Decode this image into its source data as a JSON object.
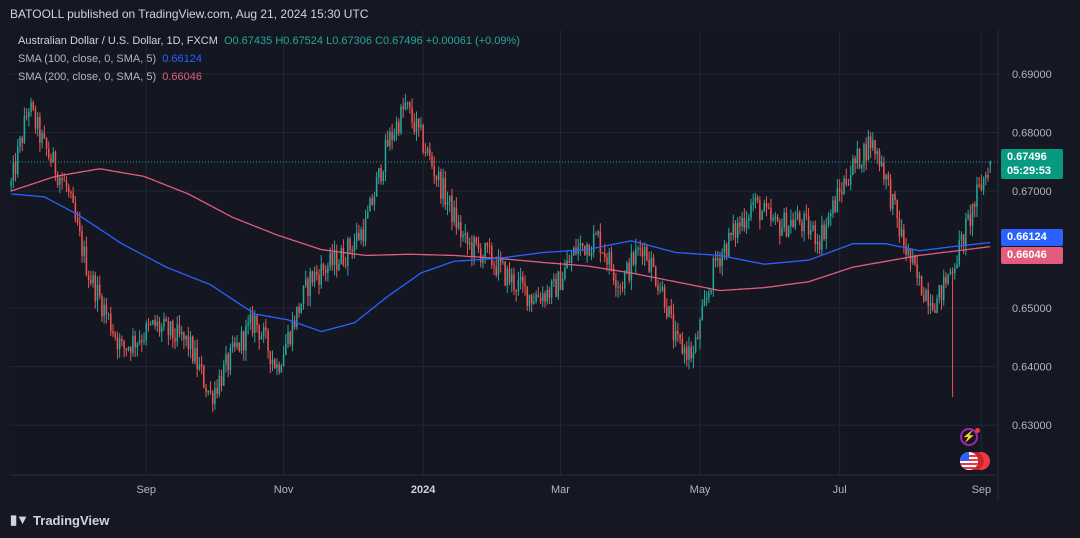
{
  "header": {
    "published": "BATOOLL published on TradingView.com, Aug 21, 2024 15:30 UTC"
  },
  "legend": {
    "symbol": "Australian Dollar / U.S. Dollar, 1D, FXCM",
    "ohlc": "O0.67435 H0.67524 L0.67306 C0.67496 +0.00061 (+0.09%)",
    "sma100_label": "SMA (100, close, 0, SMA, 5)",
    "sma100_value": "0.66124",
    "sma200_label": "SMA (200, close, 0, SMA, 5)",
    "sma200_value": "0.66046"
  },
  "price_tags": {
    "last_price": "0.67496",
    "countdown": "05:29:53",
    "sma100": "0.66124",
    "sma200": "0.66046"
  },
  "footer": {
    "brand": "TradingView"
  },
  "colors": {
    "up": "#26a69a",
    "down": "#ef5350",
    "sma100": "#2962ff",
    "sma200": "#e25c7c",
    "background": "#151823",
    "grid": "#232632"
  },
  "chart_data": {
    "type": "candlestick",
    "title": "Australian Dollar / U.S. Dollar, 1D, FXCM",
    "ylim": [
      0.6215,
      0.6975
    ],
    "y_ticks": [
      "0.69000",
      "0.68000",
      "0.67000",
      "0.65000",
      "0.64000",
      "0.63000"
    ],
    "x_ticks": [
      "Sep",
      "Nov",
      "2024",
      "Mar",
      "May",
      "Jul",
      "Sep"
    ],
    "grid": true,
    "ohlc_last": {
      "open": 0.67435,
      "high": 0.67524,
      "low": 0.67306,
      "close": 0.67496,
      "change": 0.00061,
      "change_pct": 0.09
    },
    "close_anchors": [
      [
        0,
        0.671
      ],
      [
        8,
        0.6845
      ],
      [
        15,
        0.6775
      ],
      [
        25,
        0.6705
      ],
      [
        35,
        0.656
      ],
      [
        50,
        0.643
      ],
      [
        65,
        0.647
      ],
      [
        80,
        0.644
      ],
      [
        90,
        0.635
      ],
      [
        100,
        0.642
      ],
      [
        110,
        0.648
      ],
      [
        120,
        0.64
      ],
      [
        135,
        0.655
      ],
      [
        150,
        0.659
      ],
      [
        160,
        0.664
      ],
      [
        170,
        0.678
      ],
      [
        178,
        0.6845
      ],
      [
        185,
        0.679
      ],
      [
        195,
        0.67
      ],
      [
        205,
        0.661
      ],
      [
        215,
        0.659
      ],
      [
        225,
        0.655
      ],
      [
        235,
        0.652
      ],
      [
        245,
        0.653
      ],
      [
        255,
        0.66
      ],
      [
        265,
        0.662
      ],
      [
        275,
        0.654
      ],
      [
        285,
        0.661
      ],
      [
        295,
        0.652
      ],
      [
        300,
        0.644
      ],
      [
        308,
        0.642
      ],
      [
        318,
        0.658
      ],
      [
        325,
        0.662
      ],
      [
        335,
        0.668
      ],
      [
        345,
        0.664
      ],
      [
        355,
        0.665
      ],
      [
        365,
        0.662
      ],
      [
        378,
        0.673
      ],
      [
        388,
        0.6785
      ],
      [
        393,
        0.675
      ],
      [
        402,
        0.662
      ],
      [
        410,
        0.654
      ],
      [
        418,
        0.651
      ],
      [
        428,
        0.66
      ],
      [
        436,
        0.669
      ],
      [
        442,
        0.675
      ]
    ],
    "sma100_anchors": [
      [
        0,
        0.6695
      ],
      [
        15,
        0.669
      ],
      [
        30,
        0.666
      ],
      [
        50,
        0.661
      ],
      [
        70,
        0.657
      ],
      [
        90,
        0.654
      ],
      [
        110,
        0.649
      ],
      [
        125,
        0.648
      ],
      [
        140,
        0.646
      ],
      [
        155,
        0.6475
      ],
      [
        170,
        0.652
      ],
      [
        185,
        0.656
      ],
      [
        200,
        0.658
      ],
      [
        220,
        0.6585
      ],
      [
        240,
        0.6595
      ],
      [
        260,
        0.66
      ],
      [
        280,
        0.6615
      ],
      [
        300,
        0.6595
      ],
      [
        320,
        0.659
      ],
      [
        340,
        0.6575
      ],
      [
        360,
        0.6582
      ],
      [
        380,
        0.661
      ],
      [
        395,
        0.661
      ],
      [
        410,
        0.6598
      ],
      [
        425,
        0.6605
      ],
      [
        442,
        0.6612
      ]
    ],
    "sma200_anchors": [
      [
        0,
        0.67
      ],
      [
        20,
        0.6725
      ],
      [
        40,
        0.6738
      ],
      [
        60,
        0.6725
      ],
      [
        80,
        0.6695
      ],
      [
        100,
        0.6655
      ],
      [
        120,
        0.6625
      ],
      [
        140,
        0.66
      ],
      [
        160,
        0.659
      ],
      [
        180,
        0.6592
      ],
      [
        200,
        0.659
      ],
      [
        220,
        0.6585
      ],
      [
        240,
        0.6578
      ],
      [
        260,
        0.6572
      ],
      [
        280,
        0.656
      ],
      [
        300,
        0.6545
      ],
      [
        320,
        0.653
      ],
      [
        340,
        0.6535
      ],
      [
        360,
        0.6545
      ],
      [
        380,
        0.657
      ],
      [
        395,
        0.658
      ],
      [
        410,
        0.659
      ],
      [
        425,
        0.6597
      ],
      [
        442,
        0.6605
      ]
    ]
  }
}
